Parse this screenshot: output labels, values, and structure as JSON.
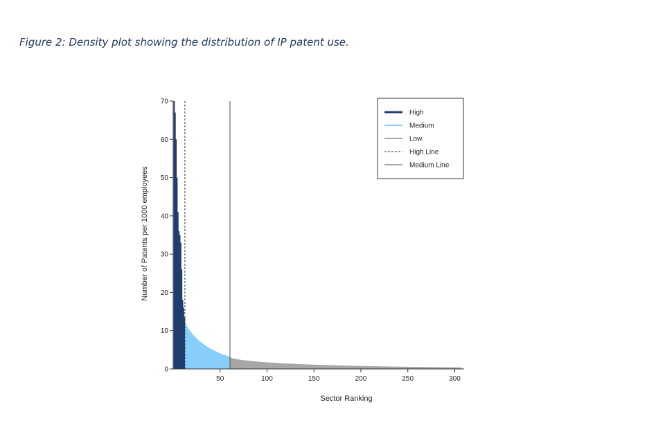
{
  "caption": "Figure 2: Density plot showing the distribution of IP patent use.",
  "chart_data": {
    "type": "bar",
    "xlabel": "Sector Ranking",
    "ylabel": "Number of Patents per 1000 employees",
    "xlim": [
      0,
      310
    ],
    "ylim": [
      0,
      70
    ],
    "x_ticks": [
      50,
      100,
      150,
      200,
      250,
      300
    ],
    "y_ticks": [
      0,
      10,
      20,
      30,
      40,
      50,
      60,
      70
    ],
    "grid": false,
    "legend_position": "top-right",
    "series": [
      {
        "name": "High",
        "color": "#1f3c6e",
        "x": [
          1,
          2,
          3,
          4,
          5,
          6,
          7,
          8,
          9,
          10,
          11,
          12
        ],
        "values": [
          70,
          67,
          60,
          50,
          41,
          36,
          35,
          33,
          26,
          18,
          16,
          13.5
        ]
      },
      {
        "name": "Medium",
        "color": "#87cefa",
        "x_range": [
          13,
          60
        ],
        "start_value": 12,
        "end_value": 3.2
      },
      {
        "name": "Low",
        "color": "#a6a6a6",
        "x_range": [
          61,
          306
        ],
        "start_value": 3.0,
        "end_value": 0.4
      }
    ],
    "reference_lines": [
      {
        "name": "High Line",
        "x": 12.5,
        "style": "dashed",
        "color": "#333333"
      },
      {
        "name": "Medium Line",
        "x": 60.5,
        "style": "solid",
        "color": "#555555"
      }
    ],
    "legend": [
      "High",
      "Medium",
      "Low",
      "High Line",
      "Medium Line"
    ]
  }
}
